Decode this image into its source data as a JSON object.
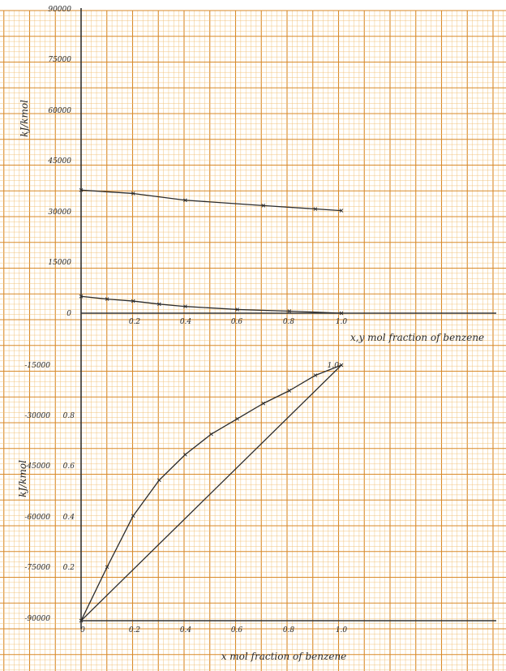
{
  "chart_data": [
    {
      "type": "line",
      "title": "",
      "xlabel": "x,y mol fraction of benzene",
      "ylabel": "kJ/kmol",
      "ylim": [
        0,
        90000
      ],
      "xlim": [
        0,
        1.0
      ],
      "grid": true,
      "y_ticks": [
        "90000",
        "75000",
        "60000",
        "45000",
        "30000",
        "15000",
        "0"
      ],
      "x_ticks": [
        "0.2",
        "0.4",
        "0.6",
        "0.8",
        "1.0"
      ],
      "series": [
        {
          "x": [
            0,
            0.2,
            0.4,
            0.7,
            0.9,
            1.0
          ],
          "y": [
            36600,
            35600,
            33600,
            32000,
            31000,
            30500
          ]
        },
        {
          "x": [
            0,
            0.1,
            0.2,
            0.3,
            0.4,
            0.6,
            0.8,
            1.0
          ],
          "y": [
            5000,
            4200,
            3600,
            2700,
            2000,
            1100,
            600,
            0
          ]
        }
      ]
    },
    {
      "type": "line",
      "title": "",
      "xlabel": "x mol fraction of benzene",
      "ylabel": "kJ/kmol",
      "xlim": [
        0,
        1.0
      ],
      "ylim": [
        0,
        1.0
      ],
      "grid": true,
      "y_ticks": [
        "1.0",
        "0.8",
        "0.6",
        "0.4",
        "0.2"
      ],
      "x_ticks": [
        "0",
        "0.2",
        "0.4",
        "0.6",
        "0.8",
        "1.0"
      ],
      "energy_ticks": [
        "-15000",
        "-30000",
        "-45000",
        "-60000",
        "-75000",
        "-90000"
      ],
      "series": [
        {
          "x": [
            0,
            0.1,
            0.2,
            0.3,
            0.4,
            0.5,
            0.6,
            0.7,
            0.8,
            0.9,
            1.0
          ],
          "y": [
            0,
            0.21,
            0.41,
            0.55,
            0.65,
            0.73,
            0.79,
            0.85,
            0.9,
            0.96,
            1.0
          ]
        },
        {
          "x": [
            0,
            1.0
          ],
          "y": [
            0,
            1.0
          ]
        }
      ]
    }
  ]
}
